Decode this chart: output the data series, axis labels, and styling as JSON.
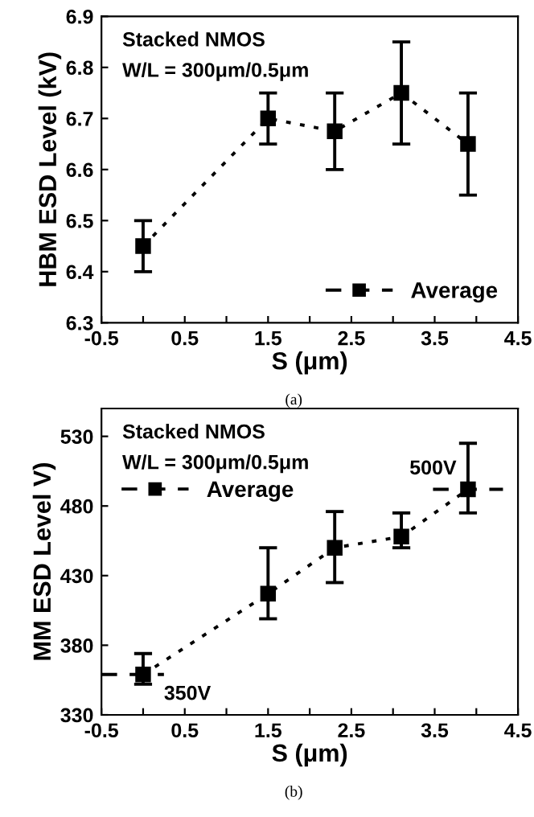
{
  "chart_data": [
    {
      "type": "line",
      "xlabel": "S (μm)",
      "ylabel": "HBM ESD Level (kV)",
      "xlim": [
        -0.5,
        4.5
      ],
      "ylim": [
        6.3,
        6.9
      ],
      "xticks": [
        -0.5,
        {
          "value": 0,
          "label": null
        },
        0.5,
        {
          "value": 1,
          "label": null
        },
        1.5,
        {
          "value": 2,
          "label": null
        },
        2.5,
        {
          "value": 3,
          "label": null
        },
        3.5,
        {
          "value": 4,
          "label": null
        },
        4.5
      ],
      "yticks": [
        6.3,
        6.4,
        6.5,
        6.6,
        6.7,
        6.8,
        6.9
      ],
      "series": [
        {
          "name": "Average",
          "color": "#000000",
          "marker": "square",
          "line_style": "dotted",
          "x": [
            0,
            1.5,
            2.3,
            3.1,
            3.9
          ],
          "values": [
            6.45,
            6.7,
            6.675,
            6.75,
            6.65
          ],
          "errors": [
            [
              6.4,
              6.5
            ],
            [
              6.65,
              6.75
            ],
            [
              6.6,
              6.75
            ],
            [
              6.65,
              6.85
            ],
            [
              6.55,
              6.75
            ]
          ]
        }
      ],
      "legend": "bottom right",
      "grid": false,
      "annotations": [
        "Stacked NMOS",
        "W/L = 300μm/0.5μm",
        "(a)"
      ]
    },
    {
      "type": "line",
      "xlabel": "S (μm)",
      "ylabel": "MM ESD Level V)",
      "xlim": [
        -0.5,
        4.5
      ],
      "ylim": [
        330,
        550
      ],
      "xticks": [
        -0.5,
        {
          "value": 0,
          "label": null
        },
        0.5,
        {
          "value": 1,
          "label": null
        },
        1.5,
        {
          "value": 2,
          "label": null
        },
        2.5,
        {
          "value": 3,
          "label": null
        },
        3.5,
        {
          "value": 4,
          "label": null
        },
        4.5
      ],
      "yticks": [
        330,
        380,
        430,
        480,
        530
      ],
      "series": [
        {
          "name": "Average",
          "color": "#000000",
          "marker": "square",
          "line_style": "dotted",
          "x": [
            0,
            1.5,
            2.3,
            3.1,
            3.9
          ],
          "values": [
            359,
            417,
            450,
            458,
            492
          ],
          "errors": [
            [
              352,
              374
            ],
            [
              399,
              450
            ],
            [
              425,
              476
            ],
            [
              450,
              475
            ],
            [
              475,
              525
            ]
          ]
        },
        {
          "color": "#000000",
          "marker": "none",
          "line_style": "dashed",
          "x": [
            -0.5,
            0.25
          ],
          "values": [
            359,
            359
          ]
        },
        {
          "color": "#000000",
          "marker": "none",
          "line_style": "dashed",
          "x": [
            3.48,
            4.32
          ],
          "values": [
            492,
            492
          ]
        }
      ],
      "legend": "top left",
      "grid": false,
      "annotations": [
        "Stacked NMOS",
        "W/L = 300μm/0.5μm",
        {
          "text": "350V",
          "x": 0.25,
          "y": 359
        },
        {
          "text": "500V",
          "x": 3.48,
          "y": 492
        },
        "(b)"
      ]
    }
  ]
}
